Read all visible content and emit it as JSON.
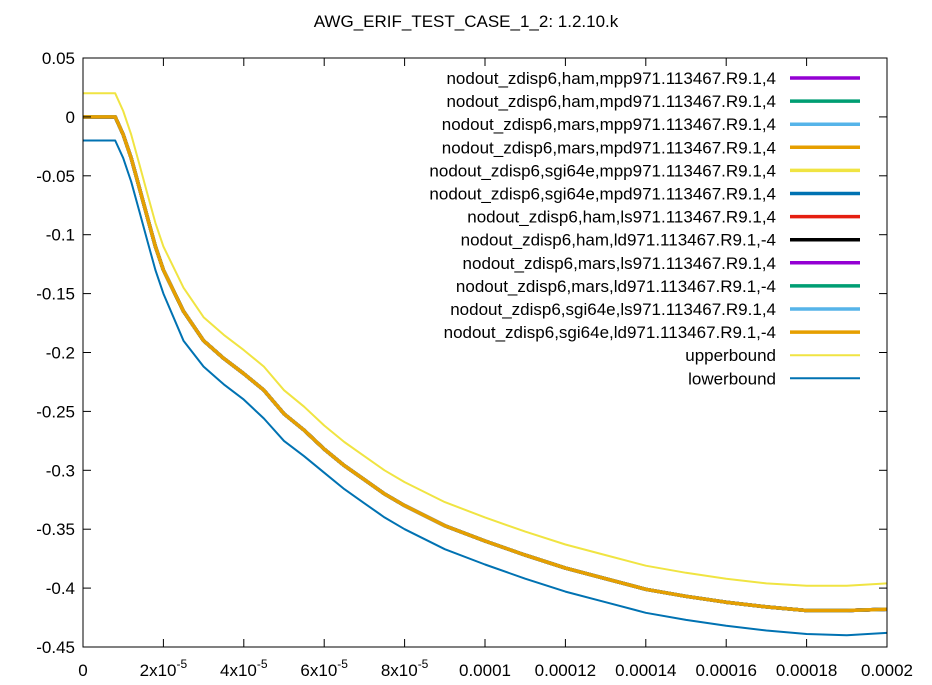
{
  "chart_data": {
    "type": "line",
    "title": "AWG_ERIF_TEST_CASE_1_2: 1.2.10.k",
    "xlabel": "",
    "ylabel": "",
    "xlim": [
      0,
      0.0002
    ],
    "ylim": [
      -0.45,
      0.05
    ],
    "x_ticks": [
      {
        "value": 0,
        "label": "0"
      },
      {
        "value": 2e-05,
        "label": "2x10",
        "exp": "-5"
      },
      {
        "value": 4e-05,
        "label": "4x10",
        "exp": "-5"
      },
      {
        "value": 6e-05,
        "label": "6x10",
        "exp": "-5"
      },
      {
        "value": 8e-05,
        "label": "8x10",
        "exp": "-5"
      },
      {
        "value": 0.0001,
        "label": "0.0001"
      },
      {
        "value": 0.00012,
        "label": "0.00012"
      },
      {
        "value": 0.00014,
        "label": "0.00014"
      },
      {
        "value": 0.00016,
        "label": "0.00016"
      },
      {
        "value": 0.00018,
        "label": "0.00018"
      },
      {
        "value": 0.0002,
        "label": "0.0002"
      }
    ],
    "y_ticks": [
      {
        "value": 0.05,
        "label": "0.05"
      },
      {
        "value": 0,
        "label": "0"
      },
      {
        "value": -0.05,
        "label": "-0.05"
      },
      {
        "value": -0.1,
        "label": "-0.1"
      },
      {
        "value": -0.15,
        "label": "-0.15"
      },
      {
        "value": -0.2,
        "label": "-0.2"
      },
      {
        "value": -0.25,
        "label": "-0.25"
      },
      {
        "value": -0.3,
        "label": "-0.3"
      },
      {
        "value": -0.35,
        "label": "-0.35"
      },
      {
        "value": -0.4,
        "label": "-0.4"
      },
      {
        "value": -0.45,
        "label": "-0.45"
      }
    ],
    "grid": false,
    "legend_position": "top-right",
    "x": [
      0,
      5e-06,
      8e-06,
      1e-05,
      1.2e-05,
      1.4e-05,
      1.6e-05,
      1.8e-05,
      2e-05,
      2.5e-05,
      3e-05,
      3.5e-05,
      4e-05,
      4.5e-05,
      5e-05,
      5.5e-05,
      6e-05,
      6.5e-05,
      7e-05,
      7.5e-05,
      8e-05,
      9e-05,
      0.0001,
      0.00011,
      0.00012,
      0.00013,
      0.00014,
      0.00015,
      0.00016,
      0.00017,
      0.00018,
      0.00019,
      0.0002
    ],
    "series": [
      {
        "name": "nodout_zdisp6,ham,mpp971.113467.R9.1,4",
        "color": "#9400d3",
        "width": 3.5,
        "values": [
          0,
          0,
          0,
          -0.015,
          -0.035,
          -0.06,
          -0.085,
          -0.11,
          -0.13,
          -0.165,
          -0.19,
          -0.205,
          -0.218,
          -0.232,
          -0.252,
          -0.266,
          -0.282,
          -0.296,
          -0.308,
          -0.32,
          -0.33,
          -0.347,
          -0.36,
          -0.372,
          -0.383,
          -0.392,
          -0.401,
          -0.407,
          -0.412,
          -0.416,
          -0.419,
          -0.419,
          -0.418
        ]
      },
      {
        "name": "nodout_zdisp6,ham,mpd971.113467.R9.1,4",
        "color": "#009e73",
        "width": 3.5,
        "values": [
          0,
          0,
          0,
          -0.015,
          -0.035,
          -0.06,
          -0.085,
          -0.11,
          -0.13,
          -0.165,
          -0.19,
          -0.205,
          -0.218,
          -0.232,
          -0.252,
          -0.266,
          -0.282,
          -0.296,
          -0.308,
          -0.32,
          -0.33,
          -0.347,
          -0.36,
          -0.372,
          -0.383,
          -0.392,
          -0.401,
          -0.407,
          -0.412,
          -0.416,
          -0.419,
          -0.419,
          -0.418
        ]
      },
      {
        "name": "nodout_zdisp6,mars,mpp971.113467.R9.1,4",
        "color": "#56b4e9",
        "width": 3.5,
        "values": [
          0,
          0,
          0,
          -0.015,
          -0.035,
          -0.06,
          -0.085,
          -0.11,
          -0.13,
          -0.165,
          -0.19,
          -0.205,
          -0.218,
          -0.232,
          -0.252,
          -0.266,
          -0.282,
          -0.296,
          -0.308,
          -0.32,
          -0.33,
          -0.347,
          -0.36,
          -0.372,
          -0.383,
          -0.392,
          -0.401,
          -0.407,
          -0.412,
          -0.416,
          -0.419,
          -0.419,
          -0.418
        ]
      },
      {
        "name": "nodout_zdisp6,mars,mpd971.113467.R9.1,4",
        "color": "#e69f00",
        "width": 3.5,
        "values": [
          0,
          0,
          0,
          -0.015,
          -0.035,
          -0.06,
          -0.085,
          -0.11,
          -0.13,
          -0.165,
          -0.19,
          -0.205,
          -0.218,
          -0.232,
          -0.252,
          -0.266,
          -0.282,
          -0.296,
          -0.308,
          -0.32,
          -0.33,
          -0.347,
          -0.36,
          -0.372,
          -0.383,
          -0.392,
          -0.401,
          -0.407,
          -0.412,
          -0.416,
          -0.419,
          -0.419,
          -0.418
        ]
      },
      {
        "name": "nodout_zdisp6,sgi64e,mpp971.113467.R9.1,4",
        "color": "#f0e442",
        "width": 3.5,
        "values": [
          0,
          0,
          0,
          -0.015,
          -0.035,
          -0.06,
          -0.085,
          -0.11,
          -0.13,
          -0.165,
          -0.19,
          -0.205,
          -0.218,
          -0.232,
          -0.252,
          -0.266,
          -0.282,
          -0.296,
          -0.308,
          -0.32,
          -0.33,
          -0.347,
          -0.36,
          -0.372,
          -0.383,
          -0.392,
          -0.401,
          -0.407,
          -0.412,
          -0.416,
          -0.419,
          -0.419,
          -0.418
        ]
      },
      {
        "name": "nodout_zdisp6,sgi64e,mpd971.113467.R9.1,4",
        "color": "#0072b2",
        "width": 3.5,
        "values": [
          0,
          0,
          0,
          -0.015,
          -0.035,
          -0.06,
          -0.085,
          -0.11,
          -0.13,
          -0.165,
          -0.19,
          -0.205,
          -0.218,
          -0.232,
          -0.252,
          -0.266,
          -0.282,
          -0.296,
          -0.308,
          -0.32,
          -0.33,
          -0.347,
          -0.36,
          -0.372,
          -0.383,
          -0.392,
          -0.401,
          -0.407,
          -0.412,
          -0.416,
          -0.419,
          -0.419,
          -0.418
        ]
      },
      {
        "name": "nodout_zdisp6,ham,ls971.113467.R9.1,4",
        "color": "#e51e10",
        "width": 3.5,
        "values": [
          0,
          0,
          0,
          -0.015,
          -0.035,
          -0.06,
          -0.085,
          -0.11,
          -0.13,
          -0.165,
          -0.19,
          -0.205,
          -0.218,
          -0.232,
          -0.252,
          -0.266,
          -0.282,
          -0.296,
          -0.308,
          -0.32,
          -0.33,
          -0.347,
          -0.36,
          -0.372,
          -0.383,
          -0.392,
          -0.401,
          -0.407,
          -0.412,
          -0.416,
          -0.419,
          -0.419,
          -0.418
        ]
      },
      {
        "name": "nodout_zdisp6,ham,ld971.113467.R9.1,-4",
        "color": "#000000",
        "width": 3.5,
        "values": [
          0,
          0,
          0,
          -0.015,
          -0.035,
          -0.06,
          -0.085,
          -0.11,
          -0.13,
          -0.165,
          -0.19,
          -0.205,
          -0.218,
          -0.232,
          -0.252,
          -0.266,
          -0.282,
          -0.296,
          -0.308,
          -0.32,
          -0.33,
          -0.347,
          -0.36,
          -0.372,
          -0.383,
          -0.392,
          -0.401,
          -0.407,
          -0.412,
          -0.416,
          -0.419,
          -0.419,
          -0.418
        ]
      },
      {
        "name": "nodout_zdisp6,mars,ls971.113467.R9.1,4",
        "color": "#9400d3",
        "width": 3.5,
        "values": [
          0,
          0,
          0,
          -0.015,
          -0.035,
          -0.06,
          -0.085,
          -0.11,
          -0.13,
          -0.165,
          -0.19,
          -0.205,
          -0.218,
          -0.232,
          -0.252,
          -0.266,
          -0.282,
          -0.296,
          -0.308,
          -0.32,
          -0.33,
          -0.347,
          -0.36,
          -0.372,
          -0.383,
          -0.392,
          -0.401,
          -0.407,
          -0.412,
          -0.416,
          -0.419,
          -0.419,
          -0.418
        ]
      },
      {
        "name": "nodout_zdisp6,mars,ld971.113467.R9.1,-4",
        "color": "#009e73",
        "width": 3.5,
        "values": [
          0,
          0,
          0,
          -0.015,
          -0.035,
          -0.06,
          -0.085,
          -0.11,
          -0.13,
          -0.165,
          -0.19,
          -0.205,
          -0.218,
          -0.232,
          -0.252,
          -0.266,
          -0.282,
          -0.296,
          -0.308,
          -0.32,
          -0.33,
          -0.347,
          -0.36,
          -0.372,
          -0.383,
          -0.392,
          -0.401,
          -0.407,
          -0.412,
          -0.416,
          -0.419,
          -0.419,
          -0.418
        ]
      },
      {
        "name": "nodout_zdisp6,sgi64e,ls971.113467.R9.1,4",
        "color": "#56b4e9",
        "width": 3.5,
        "values": [
          0,
          0,
          0,
          -0.015,
          -0.035,
          -0.06,
          -0.085,
          -0.11,
          -0.13,
          -0.165,
          -0.19,
          -0.205,
          -0.218,
          -0.232,
          -0.252,
          -0.266,
          -0.282,
          -0.296,
          -0.308,
          -0.32,
          -0.33,
          -0.347,
          -0.36,
          -0.372,
          -0.383,
          -0.392,
          -0.401,
          -0.407,
          -0.412,
          -0.416,
          -0.419,
          -0.419,
          -0.418
        ]
      },
      {
        "name": "nodout_zdisp6,sgi64e,ld971.113467.R9.1,-4",
        "color": "#e69f00",
        "width": 3.5,
        "values": [
          0,
          0,
          0,
          -0.015,
          -0.035,
          -0.06,
          -0.085,
          -0.11,
          -0.13,
          -0.165,
          -0.19,
          -0.205,
          -0.218,
          -0.232,
          -0.252,
          -0.266,
          -0.282,
          -0.296,
          -0.308,
          -0.32,
          -0.33,
          -0.347,
          -0.36,
          -0.372,
          -0.383,
          -0.392,
          -0.401,
          -0.407,
          -0.412,
          -0.416,
          -0.419,
          -0.419,
          -0.418
        ]
      },
      {
        "name": "upperbound",
        "color": "#f0e442",
        "width": 2,
        "values": [
          0.02,
          0.02,
          0.02,
          0.005,
          -0.015,
          -0.04,
          -0.065,
          -0.09,
          -0.11,
          -0.145,
          -0.17,
          -0.185,
          -0.198,
          -0.212,
          -0.232,
          -0.246,
          -0.262,
          -0.276,
          -0.288,
          -0.3,
          -0.31,
          -0.327,
          -0.34,
          -0.352,
          -0.363,
          -0.372,
          -0.381,
          -0.387,
          -0.392,
          -0.396,
          -0.398,
          -0.398,
          -0.396
        ]
      },
      {
        "name": "lowerbound",
        "color": "#0072b2",
        "width": 2,
        "values": [
          -0.02,
          -0.02,
          -0.02,
          -0.035,
          -0.055,
          -0.08,
          -0.105,
          -0.13,
          -0.15,
          -0.19,
          -0.212,
          -0.227,
          -0.24,
          -0.256,
          -0.275,
          -0.288,
          -0.302,
          -0.316,
          -0.328,
          -0.34,
          -0.35,
          -0.367,
          -0.38,
          -0.392,
          -0.403,
          -0.412,
          -0.421,
          -0.427,
          -0.432,
          -0.436,
          -0.439,
          -0.44,
          -0.438
        ]
      }
    ]
  }
}
